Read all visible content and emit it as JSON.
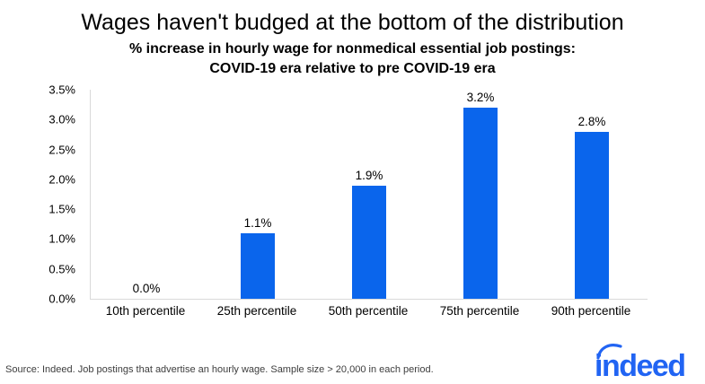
{
  "header": {
    "title": "Wages haven't budged at the bottom of the distribution",
    "subtitle_line1": "% increase in hourly wage for nonmedical essential job postings:",
    "subtitle_line2": "COVID-19 era relative to pre COVID-19 era"
  },
  "chart_data": {
    "type": "bar",
    "title": "Wages haven't budged at the bottom of the distribution",
    "subtitle": "% increase in hourly wage for nonmedical essential job postings: COVID-19 era relative to pre COVID-19 era",
    "categories": [
      "10th percentile",
      "25th percentile",
      "50th percentile",
      "75th percentile",
      "90th percentile"
    ],
    "values": [
      0.0,
      1.1,
      1.9,
      3.2,
      2.8
    ],
    "data_labels": [
      "0.0%",
      "1.1%",
      "1.9%",
      "3.2%",
      "2.8%"
    ],
    "xlabel": "",
    "ylabel": "",
    "ylim": [
      0,
      3.5
    ],
    "ytick_step": 0.5,
    "ytick_labels": [
      "0.0%",
      "0.5%",
      "1.0%",
      "1.5%",
      "2.0%",
      "2.5%",
      "3.0%",
      "3.5%"
    ],
    "grid": false,
    "legend": "none",
    "bar_color": "#0A65EC"
  },
  "footer": {
    "source": "Source: Indeed. Job postings that advertise an hourly wage. Sample size > 20,000 in each period.",
    "logo_text": "indeed",
    "logo_color": "#2164F3"
  },
  "colors": {
    "bar": "#0A65EC",
    "axis_line": "#D9D9D9",
    "text": "#000000",
    "logo": "#2164F3"
  }
}
